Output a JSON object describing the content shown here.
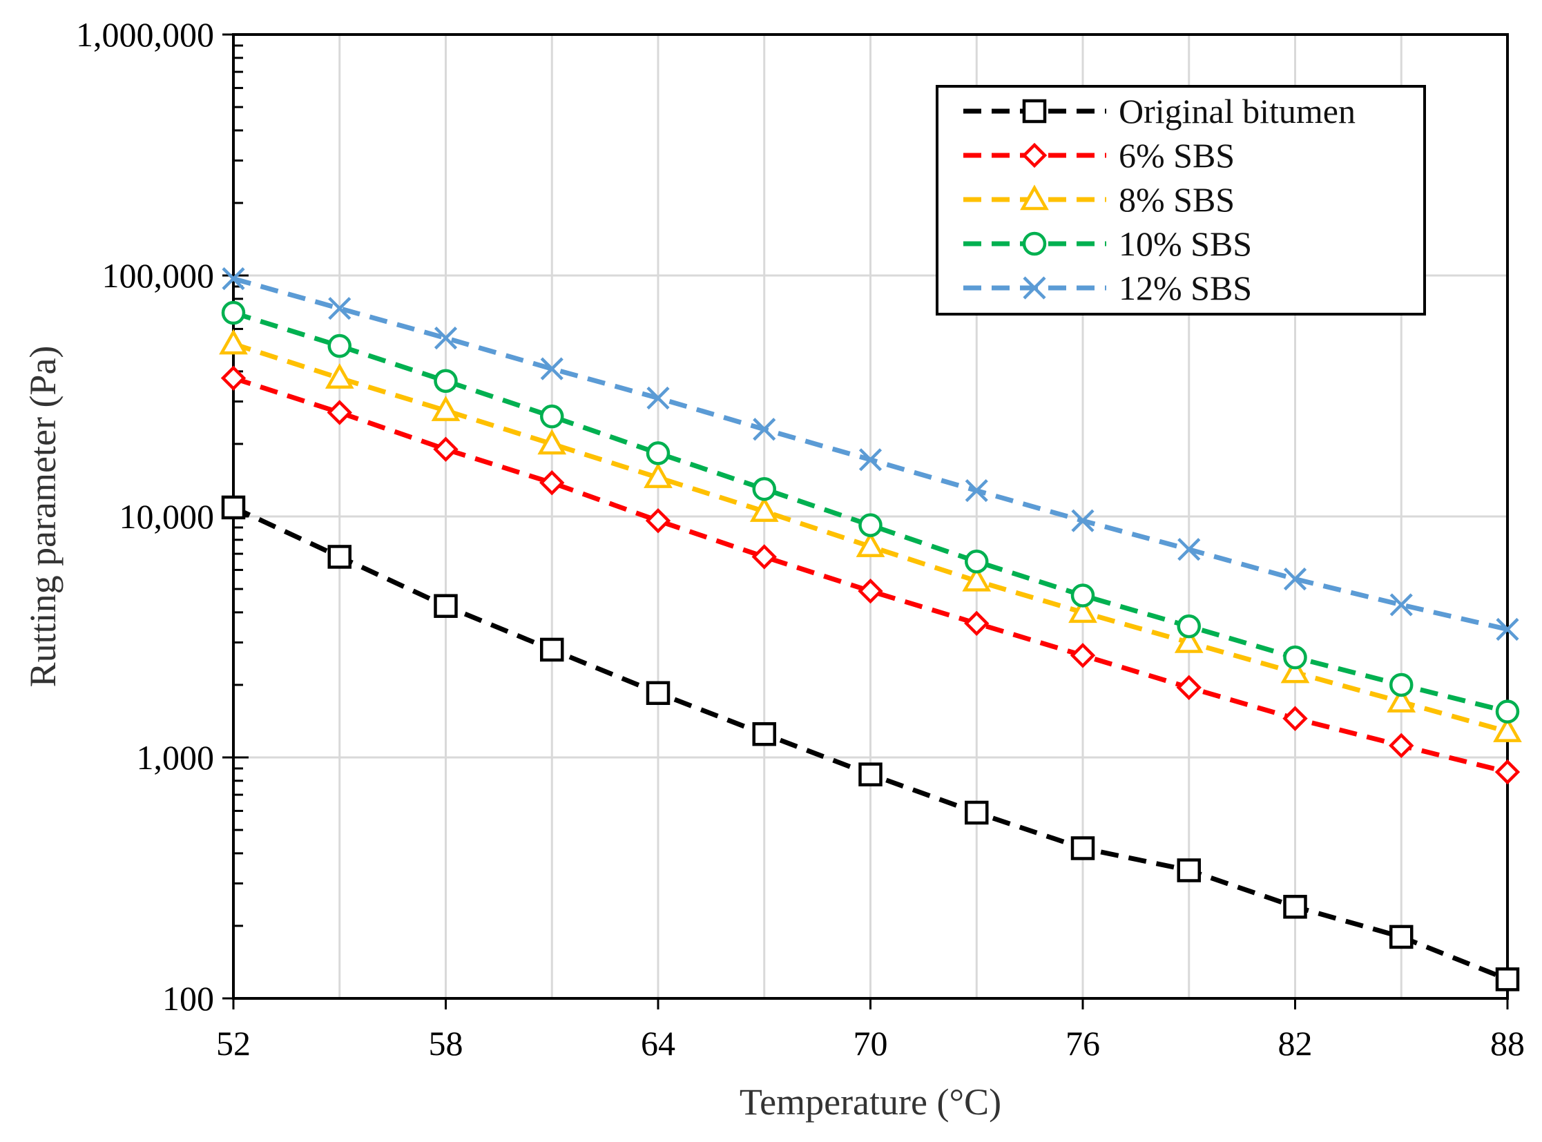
{
  "chart_data": {
    "type": "line",
    "title": "",
    "xlabel": "Temperature (°C)",
    "ylabel": "Rutting parameter (Pa)",
    "yscale": "log",
    "xlim": [
      52,
      88
    ],
    "ylim": [
      100,
      1000000
    ],
    "grid": true,
    "legend_position": "top-right",
    "x_ticks": [
      52,
      58,
      64,
      70,
      76,
      82,
      88
    ],
    "x_tick_labels": [
      "52",
      "58",
      "64",
      "70",
      "76",
      "82",
      "88"
    ],
    "y_ticks": [
      100,
      1000,
      10000,
      100000,
      1000000
    ],
    "y_tick_labels": [
      "100",
      "1,000",
      "10,000",
      "100,000",
      "1,000,000"
    ],
    "x": [
      52,
      55,
      58,
      61,
      64,
      67,
      70,
      73,
      76,
      79,
      82,
      85,
      88
    ],
    "series": [
      {
        "name": "Original bitumen",
        "color": "#000000",
        "marker": "square",
        "values": [
          10900,
          6800,
          4250,
          2800,
          1850,
          1250,
          850,
          590,
          420,
          340,
          240,
          180,
          120
        ]
      },
      {
        "name": "6% SBS",
        "color": "#ff0000",
        "marker": "diamond",
        "values": [
          37500,
          27000,
          19000,
          13800,
          9600,
          6800,
          4900,
          3600,
          2650,
          1950,
          1450,
          1120,
          870
        ]
      },
      {
        "name": "8% SBS",
        "color": "#ffc000",
        "marker": "triangle",
        "values": [
          52000,
          37500,
          27500,
          20000,
          14500,
          10500,
          7500,
          5400,
          4000,
          3000,
          2250,
          1700,
          1280
        ]
      },
      {
        "name": "10% SBS",
        "color": "#00b050",
        "marker": "circle",
        "values": [
          70000,
          51000,
          36500,
          26000,
          18300,
          13000,
          9200,
          6500,
          4700,
          3500,
          2600,
          2000,
          1550
        ]
      },
      {
        "name": "12% SBS",
        "color": "#5b9bd5",
        "marker": "x",
        "values": [
          97000,
          73000,
          55000,
          41000,
          31000,
          23000,
          17200,
          12800,
          9600,
          7300,
          5500,
          4300,
          3400
        ]
      }
    ]
  }
}
